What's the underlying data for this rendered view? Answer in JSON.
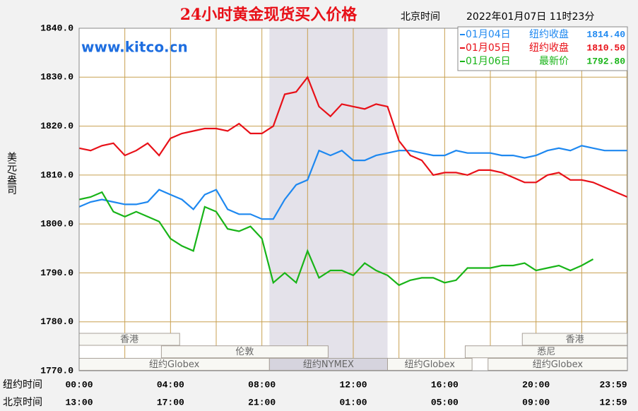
{
  "chart_data": {
    "type": "line",
    "title": "24小时黄金现货买入价格",
    "time_label": "北京时间",
    "datetime": "2022年01月07日 11时23分",
    "watermark": "www.kitco.cn",
    "ylabel": "美元/盎司",
    "ylim": [
      1770,
      1840
    ],
    "yticks": [
      {
        "value": 1770,
        "label": "1770.0"
      },
      {
        "value": 1780,
        "label": "1780.0"
      },
      {
        "value": 1790,
        "label": "1790.0"
      },
      {
        "value": 1800,
        "label": "1800.0"
      },
      {
        "value": 1810,
        "label": "1810.0"
      },
      {
        "value": 1820,
        "label": "1820.0"
      },
      {
        "value": 1830,
        "label": "1830.0"
      },
      {
        "value": 1840,
        "label": "1840.0"
      }
    ],
    "xlim": [
      0,
      24
    ],
    "x_rows": [
      "纽约时间",
      "北京时间"
    ],
    "xticks": [
      {
        "value": 0,
        "label": "00:00"
      },
      {
        "value": 4,
        "label": "04:00"
      },
      {
        "value": 8,
        "label": "08:00"
      },
      {
        "value": 12,
        "label": "12:00"
      },
      {
        "value": 16,
        "label": "16:00"
      },
      {
        "value": 20,
        "label": "20:00"
      },
      {
        "value": 23.98,
        "label": "23:59"
      }
    ],
    "xticks2": [
      {
        "value": 0,
        "label": "13:00"
      },
      {
        "value": 4,
        "label": "17:00"
      },
      {
        "value": 8,
        "label": "21:00"
      },
      {
        "value": 12,
        "label": "01:00"
      },
      {
        "value": 16,
        "label": "05:00"
      },
      {
        "value": 20,
        "label": "09:00"
      },
      {
        "value": 23.98,
        "label": "12:59"
      }
    ],
    "xgrid": [
      2,
      6,
      10,
      14,
      18,
      22
    ],
    "grid": true,
    "highlight": [
      8.33,
      13.5
    ],
    "sessions": [
      {
        "label": "香港",
        "row": 0,
        "start": 0,
        "end": 4.4
      },
      {
        "label": "香港",
        "row": 0,
        "start": 19.4,
        "end": 24
      },
      {
        "label": "伦敦",
        "row": 1,
        "start": 3.6,
        "end": 10.9
      },
      {
        "label": "悉尼",
        "row": 1,
        "start": 16.9,
        "end": 24
      },
      {
        "label": "纽约Globex",
        "row": 2,
        "start": 0,
        "end": 8.33
      },
      {
        "label": "纽约NYMEX",
        "row": 2,
        "start": 8.33,
        "end": 13.5
      },
      {
        "label": "纽约Globex",
        "row": 2,
        "start": 13.5,
        "end": 17.2
      },
      {
        "label": "纽约Globex",
        "row": 2,
        "start": 17.9,
        "end": 24
      }
    ],
    "x": [
      0,
      0.5,
      1,
      1.5,
      2,
      2.5,
      3,
      3.5,
      4,
      4.5,
      5,
      5.5,
      6,
      6.5,
      7,
      7.5,
      8,
      8.5,
      9,
      9.5,
      10,
      10.5,
      11,
      11.5,
      12,
      12.5,
      13,
      13.5,
      14,
      14.5,
      15,
      15.5,
      16,
      16.5,
      17,
      17.5,
      18,
      18.5,
      19,
      19.5,
      20,
      20.5,
      21,
      21.5,
      22,
      22.5,
      23,
      23.5,
      24
    ],
    "series": [
      {
        "name": "01月04日",
        "status": "纽约收盘",
        "close": 1814.4,
        "close_label": "1814.40",
        "color": "#1e88f0",
        "values": [
          1803.5,
          1804.5,
          1805,
          1804.5,
          1804,
          1804,
          1804.5,
          1807,
          1806,
          1805,
          1803,
          1806,
          1807,
          1803,
          1802,
          1802,
          1801,
          1801,
          1805,
          1808,
          1809,
          1815,
          1814,
          1815,
          1813,
          1813,
          1814,
          1814.5,
          1815,
          1815,
          1814.5,
          1814,
          1814,
          1815,
          1814.5,
          1814.5,
          1814.5,
          1814,
          1814,
          1813.5,
          1814,
          1815,
          1815.5,
          1815,
          1816,
          1815.5,
          1815,
          1815,
          1815
        ]
      },
      {
        "name": "01月05日",
        "status": "纽约收盘",
        "close": 1810.5,
        "close_label": "1810.50",
        "color": "#e81018",
        "values": [
          1815.5,
          1815,
          1816,
          1816.5,
          1814,
          1815,
          1816.5,
          1814,
          1817.5,
          1818.5,
          1819,
          1819.5,
          1819.5,
          1819,
          1820.5,
          1818.5,
          1818.5,
          1820,
          1826.5,
          1827,
          1830,
          1824,
          1822,
          1824.5,
          1824,
          1823.5,
          1824.5,
          1824,
          1817,
          1814,
          1813,
          1810,
          1810.5,
          1810.5,
          1810,
          1811,
          1811,
          1810.5,
          1809.5,
          1808.5,
          1808.5,
          1810,
          1810.5,
          1809,
          1809,
          1808.5,
          1807.5,
          1806.5,
          1805.5
        ]
      },
      {
        "name": "01月06日",
        "status": "最新价",
        "close": 1792.8,
        "close_label": "1792.80",
        "color": "#18b418",
        "values": [
          1805,
          1805.5,
          1806.5,
          1802.5,
          1801.5,
          1802.5,
          1801.5,
          1800.5,
          1797,
          1795.5,
          1794.5,
          1803.5,
          1802.5,
          1799,
          1798.5,
          1799.5,
          1797,
          1788,
          1790,
          1788,
          1794.5,
          1789,
          1790.5,
          1790.5,
          1789.5,
          1792,
          1790.5,
          1789.5,
          1787.5,
          1788.5,
          1789,
          1789,
          1788,
          1788.5,
          1791,
          1791,
          1791,
          1791.5,
          1791.5,
          1792,
          1790.5,
          1791,
          1791.5,
          1790.5,
          1791.5,
          1792.8,
          null,
          null,
          null
        ]
      }
    ]
  }
}
